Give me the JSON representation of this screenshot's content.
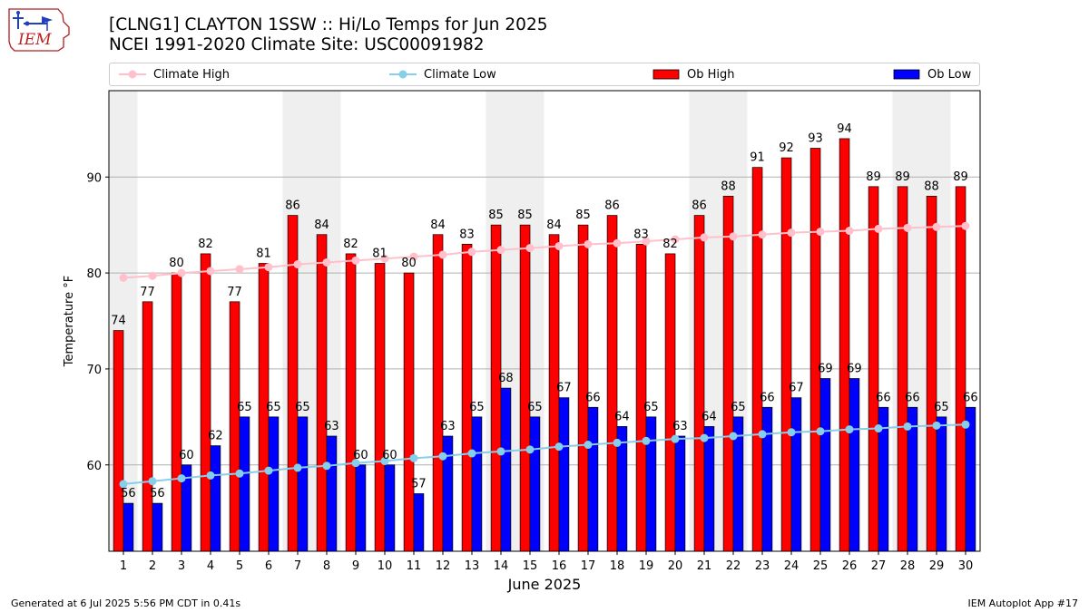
{
  "header": {
    "logo_text": "IEM",
    "title_line1": "[CLNG1] CLAYTON 1SSW :: Hi/Lo Temps for Jun 2025",
    "title_line2": "NCEI 1991-2020 Climate Site: USC00091982"
  },
  "legend": {
    "placement": "top, above plot",
    "items": [
      {
        "label": "Climate High",
        "color": "#ffc0cb",
        "kind": "line-marker"
      },
      {
        "label": "Climate Low",
        "color": "#87ceeb",
        "kind": "line-marker"
      },
      {
        "label": "Ob High",
        "color": "#ff0000",
        "kind": "bar"
      },
      {
        "label": "Ob Low",
        "color": "#0000ff",
        "kind": "bar"
      }
    ]
  },
  "footer": {
    "left": "Generated at 6 Jul 2025 5:56 PM CDT in 0.41s",
    "right": "IEM Autoplot App #17"
  },
  "chart_data": {
    "type": "bar",
    "xlabel": "June 2025",
    "ylabel": "Temperature °F",
    "ylim": [
      51,
      99
    ],
    "yticks": [
      60,
      70,
      80,
      90
    ],
    "grid": "horizontal",
    "categories": [
      "1",
      "2",
      "3",
      "4",
      "5",
      "6",
      "7",
      "8",
      "9",
      "10",
      "11",
      "12",
      "13",
      "14",
      "15",
      "16",
      "17",
      "18",
      "19",
      "20",
      "21",
      "22",
      "23",
      "24",
      "25",
      "26",
      "27",
      "28",
      "29",
      "30"
    ],
    "weekend_shading": [
      [
        1,
        1
      ],
      [
        7,
        8
      ],
      [
        14,
        15
      ],
      [
        21,
        22
      ],
      [
        28,
        29
      ]
    ],
    "series": [
      {
        "name": "Ob High",
        "type": "bar",
        "color": "#ff0000",
        "values": [
          74,
          77,
          80,
          82,
          77,
          81,
          86,
          84,
          82,
          81,
          80,
          84,
          83,
          85,
          85,
          84,
          85,
          86,
          83,
          82,
          86,
          88,
          91,
          92,
          93,
          94,
          89,
          89,
          88,
          89
        ]
      },
      {
        "name": "Ob Low",
        "type": "bar",
        "color": "#0000ff",
        "values": [
          56,
          56,
          60,
          62,
          65,
          65,
          65,
          63,
          60,
          60,
          57,
          63,
          65,
          68,
          65,
          67,
          66,
          64,
          65,
          63,
          64,
          65,
          66,
          67,
          69,
          69,
          66,
          66,
          65,
          66
        ]
      },
      {
        "name": "Climate High",
        "type": "line",
        "color": "#ffc0cb",
        "values": [
          79.5,
          79.7,
          80.0,
          80.2,
          80.4,
          80.6,
          80.9,
          81.1,
          81.3,
          81.5,
          81.7,
          81.9,
          82.2,
          82.4,
          82.6,
          82.8,
          83.0,
          83.1,
          83.3,
          83.5,
          83.7,
          83.8,
          84.0,
          84.2,
          84.3,
          84.4,
          84.6,
          84.7,
          84.8,
          84.9
        ]
      },
      {
        "name": "Climate Low",
        "type": "line",
        "color": "#87ceeb",
        "values": [
          58.0,
          58.3,
          58.6,
          58.9,
          59.1,
          59.4,
          59.7,
          59.9,
          60.2,
          60.4,
          60.7,
          60.9,
          61.2,
          61.4,
          61.6,
          61.9,
          62.1,
          62.3,
          62.5,
          62.7,
          62.8,
          63.0,
          63.2,
          63.4,
          63.5,
          63.7,
          63.8,
          64.0,
          64.1,
          64.2
        ]
      }
    ]
  }
}
